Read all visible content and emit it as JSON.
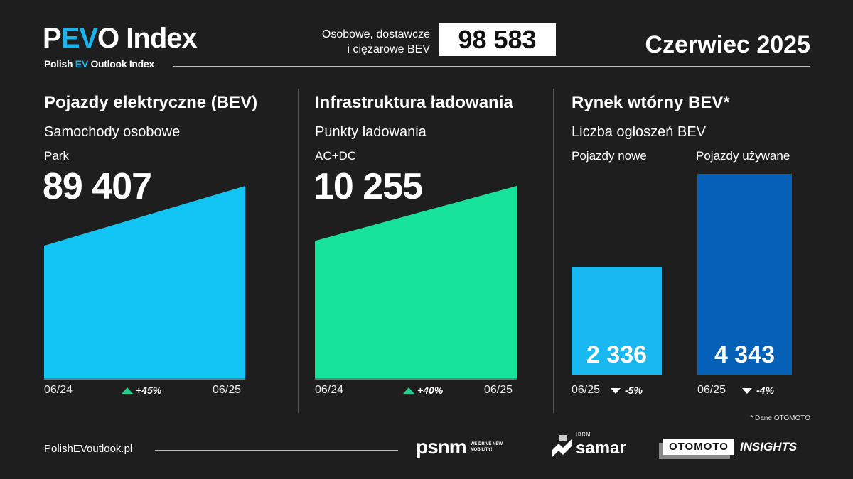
{
  "header": {
    "logo_p": "P",
    "logo_ev": "EV",
    "logo_rest": "O Index",
    "logo_sub_1": "Polish ",
    "logo_sub_ev": "EV",
    "logo_sub_2": " Outlook Index",
    "total_label_1": "Osobowe, dostawcze",
    "total_label_2": "i ciężarowe BEV",
    "total_value": "98 583",
    "date": "Czerwiec 2025"
  },
  "colors": {
    "background": "#1e1e1e",
    "bev": "#12c4f4",
    "charging": "#17e39a",
    "new": "#1ab8f0",
    "used": "#0560b8",
    "up": "#1fd08e"
  },
  "panels": [
    {
      "title": "Pojazdy elektryczne (BEV)",
      "subtitle": "Samochody osobowe",
      "metric": "Park",
      "value": "89 407",
      "start_label": "06/24",
      "end_label": "06/25",
      "change": "+45%"
    },
    {
      "title": "Infrastruktura ładowania",
      "subtitle": "Punkty ładowania",
      "metric": "AC+DC",
      "value": "10 255",
      "start_label": "06/24",
      "end_label": "06/25",
      "change": "+40%"
    },
    {
      "title": "Rynek wtórny BEV*",
      "subtitle": "Liczba ogłoszeń BEV",
      "bars": [
        {
          "label": "Pojazdy nowe",
          "value": 2336,
          "value_text": "2 336",
          "period": "06/25",
          "change": "-5%"
        },
        {
          "label": "Pojazdy używane",
          "value": 4343,
          "value_text": "4 343",
          "period": "06/25",
          "change": "-4%"
        }
      ]
    }
  ],
  "chart_data": [
    {
      "type": "area",
      "x": [
        "06/24",
        "06/25"
      ],
      "values": [
        61660,
        89407
      ],
      "change": "+45%"
    },
    {
      "type": "area",
      "x": [
        "06/24",
        "06/25"
      ],
      "values": [
        7325,
        10255
      ],
      "change": "+40%"
    },
    {
      "type": "bar",
      "categories": [
        "Pojazdy nowe",
        "Pojazdy używane"
      ],
      "values": [
        2336,
        4343
      ]
    }
  ],
  "footer": {
    "note": "* Dane OTOMOTO",
    "site": "PolishEVoutlook.pl",
    "logo_psnm": "psnm",
    "logo_psnm_tag": "WE DRIVE NEW MOBILITY!",
    "logo_samar_top": "IBRM",
    "logo_samar": "samar",
    "logo_otomoto": "OTOMOTO",
    "logo_insights": "INSIGHTS"
  }
}
